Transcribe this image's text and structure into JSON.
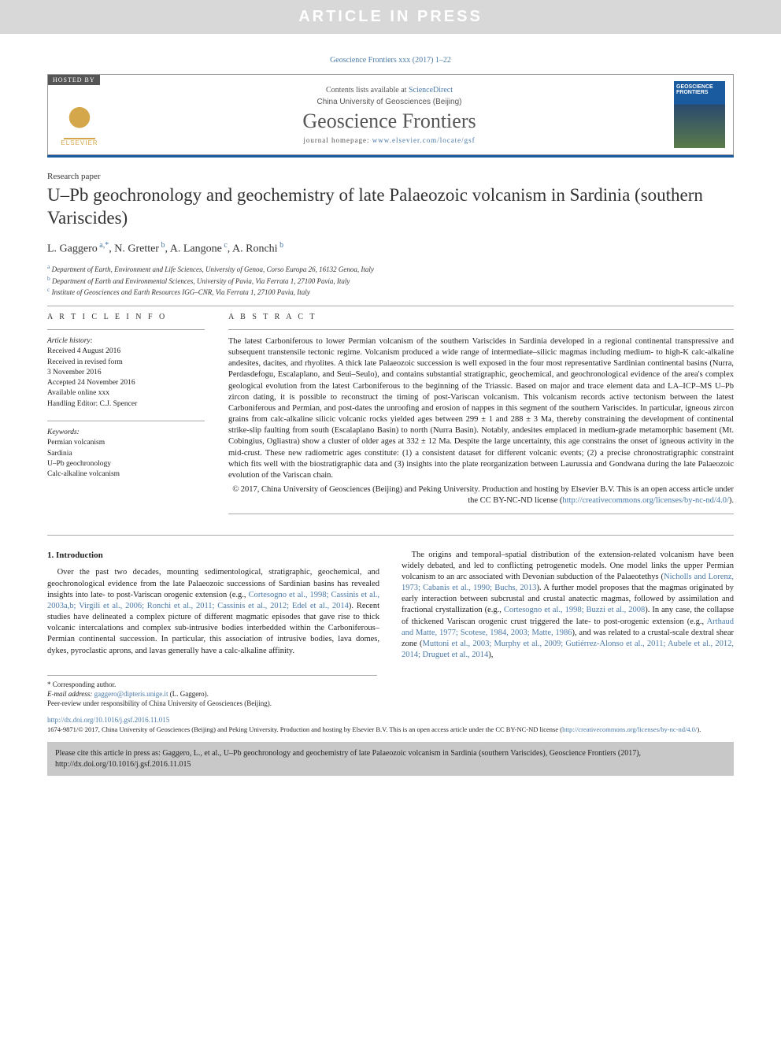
{
  "banner": "ARTICLE IN PRESS",
  "journal_ref": "Geoscience Frontiers xxx (2017) 1–22",
  "header": {
    "hosted": "HOSTED BY",
    "elsevier": "ELSEVIER",
    "contents_prefix": "Contents lists available at ",
    "contents_link": "ScienceDirect",
    "university": "China University of Geosciences (Beijing)",
    "journal": "Geoscience Frontiers",
    "homepage_prefix": "journal homepage: ",
    "homepage_link": "www.elsevier.com/locate/gsf",
    "cover_text": "GEOSCIENCE FRONTIERS"
  },
  "paper_type": "Research paper",
  "title": "U–Pb geochronology and geochemistry of late Palaeozoic volcanism in Sardinia (southern Variscides)",
  "authors": [
    {
      "name": "L. Gaggero",
      "sup": "a,*"
    },
    {
      "name": "N. Gretter",
      "sup": "b"
    },
    {
      "name": "A. Langone",
      "sup": "c"
    },
    {
      "name": "A. Ronchi",
      "sup": "b"
    }
  ],
  "affiliations": [
    {
      "sup": "a",
      "text": "Department of Earth, Environment and Life Sciences, University of Genoa, Corso Europa 26, 16132 Genoa, Italy"
    },
    {
      "sup": "b",
      "text": "Department of Earth and Environmental Sciences, University of Pavia, Via Ferrata 1, 27100 Pavia, Italy"
    },
    {
      "sup": "c",
      "text": "Institute of Geosciences and Earth Resources IGG–CNR, Via Ferrata 1, 27100 Pavia, Italy"
    }
  ],
  "info": {
    "heading": "A R T I C L E   I N F O",
    "history_label": "Article history:",
    "history": [
      "Received 4 August 2016",
      "Received in revised form",
      "3 November 2016",
      "Accepted 24 November 2016",
      "Available online xxx",
      "Handling Editor: C.J. Spencer"
    ],
    "keywords_label": "Keywords:",
    "keywords": [
      "Permian volcanism",
      "Sardinia",
      "U–Pb geochronology",
      "Calc-alkaline volcanism"
    ]
  },
  "abstract": {
    "heading": "A B S T R A C T",
    "text": "The latest Carboniferous to lower Permian volcanism of the southern Variscides in Sardinia developed in a regional continental transpressive and subsequent transtensile tectonic regime. Volcanism produced a wide range of intermediate–silicic magmas including medium- to high-K calc-alkaline andesites, dacites, and rhyolites. A thick late Palaeozoic succession is well exposed in the four most representative Sardinian continental basins (Nurra, Perdasdefogu, Escalaplano, and Seui–Seulo), and contains substantial stratigraphic, geochemical, and geochronological evidence of the area's complex geological evolution from the latest Carboniferous to the beginning of the Triassic. Based on major and trace element data and LA–ICP–MS U–Pb zircon dating, it is possible to reconstruct the timing of post-Variscan volcanism. This volcanism records active tectonism between the latest Carboniferous and Permian, and post-dates the unroofing and erosion of nappes in this segment of the southern Variscides. In particular, igneous zircon grains from calc-alkaline silicic volcanic rocks yielded ages between 299 ± 1 and 288 ± 3 Ma, thereby constraining the development of continental strike-slip faulting from south (Escalaplano Basin) to north (Nurra Basin). Notably, andesites emplaced in medium-grade metamorphic basement (Mt. Cobingius, Ogliastra) show a cluster of older ages at 332 ± 12 Ma. Despite the large uncertainty, this age constrains the onset of igneous activity in the mid-crust. These new radiometric ages constitute: (1) a consistent dataset for different volcanic events; (2) a precise chronostratigraphic constraint which fits well with the biostratigraphic data and (3) insights into the plate reorganization between Laurussia and Gondwana during the late Palaeozoic evolution of the Variscan chain.",
    "copyright_pre": "© 2017, China University of Geosciences (Beijing) and Peking University. Production and hosting by Elsevier B.V. This is an open access article under the CC BY-NC-ND license (",
    "copyright_link": "http://creativecommons.org/licenses/by-nc-nd/4.0/",
    "copyright_post": ")."
  },
  "intro": {
    "heading": "1.  Introduction",
    "p1_pre": "Over the past two decades, mounting sedimentological, stratigraphic, geochemical, and geochronological evidence from the late Palaeozoic successions of Sardinian basins has revealed insights into late- to post-Variscan orogenic extension (e.g., ",
    "p1_link": "Cortesogno et al., 1998; Cassinis et al., 2003a,b; Virgili et al., 2006; Ronchi et al., 2011; Cassinis et al., 2012; Edel et al., 2014",
    "p1_post": "). Recent studies have delineated a complex picture of different magmatic episodes that gave rise to thick volcanic intercalations and complex sub-intrusive bodies interbedded within the Carboniferous–Permian continental succession. In particular, this association of intrusive bodies, lava domes, dykes, pyroclastic aprons, and lavas generally have a calc-alkaline affinity.",
    "p2_pre": "The origins and temporal–spatial distribution of the extension-related volcanism have been widely debated, and led to conflicting petrogenetic models. One model links the upper Permian volcanism to an arc associated with Devonian subduction of the Palaeotethys (",
    "p2_link1": "Nicholls and Lorenz, 1973; Cabanis et al., 1990; Buchs, 2013",
    "p2_mid1": "). A further model proposes that the magmas originated by early interaction between subcrustal and crustal anatectic magmas, followed by assimilation and fractional crystallization (e.g., ",
    "p2_link2": "Cortesogno et al., 1998; Buzzi et al., 2008",
    "p2_mid2": "). In any case, the collapse of thickened Variscan orogenic crust triggered the late- to post-orogenic extension (e.g., ",
    "p2_link3": "Arthaud and Matte, 1977; Scotese, 1984, 2003; Matte, 1986",
    "p2_mid3": "), and was related to a crustal-scale dextral shear zone (",
    "p2_link4": "Muttoni et al., 2003; Murphy et al., 2009; Gutiérrez-Alonso et al., 2011; Aubele et al., 2012, 2014; Druguet et al., 2014",
    "p2_post": "),"
  },
  "footnotes": {
    "corr": "* Corresponding author.",
    "email_label": "E-mail address: ",
    "email": "gaggero@dipteris.unige.it",
    "email_post": " (L. Gaggero).",
    "peer": "Peer-review under responsibility of China University of Geosciences (Beijing)."
  },
  "doi": "http://dx.doi.org/10.1016/j.gsf.2016.11.015",
  "license": {
    "pre": "1674-9871/© 2017, China University of Geosciences (Beijing) and Peking University. Production and hosting by Elsevier B.V. This is an open access article under the CC BY-NC-ND license (",
    "link": "http://creativecommons.org/licenses/by-nc-nd/4.0/",
    "post": ")."
  },
  "cite_box": "Please cite this article in press as: Gaggero, L., et al., U–Pb geochronology and geochemistry of late Palaeozoic volcanism in Sardinia (southern Variscides), Geoscience Frontiers (2017), http://dx.doi.org/10.1016/j.gsf.2016.11.015"
}
